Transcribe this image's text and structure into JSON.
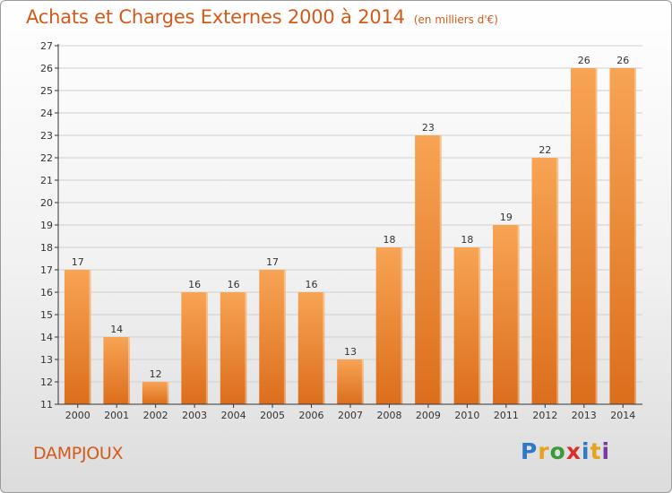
{
  "header": {
    "title": "Achats et Charges Externes 2000 à 2014",
    "subtitle": "(en milliers d'€)"
  },
  "footer": {
    "commune": "DAMPJOUX",
    "logo_letters": [
      "P",
      "r",
      "o",
      "x",
      "i",
      "t",
      "i"
    ],
    "logo_colors": [
      "#2e78c8",
      "#e8a21c",
      "#3a9a3a",
      "#d8302a",
      "#2e78c8",
      "#e8a21c",
      "#7a3aa0"
    ]
  },
  "colors": {
    "bar_light": "#f7a454",
    "bar_dark": "#dc6e1c",
    "grid": "#cfcfcf",
    "axis": "#333333",
    "text": "#333333"
  },
  "chart_data": {
    "type": "bar",
    "categories": [
      "2000",
      "2001",
      "2002",
      "2003",
      "2004",
      "2005",
      "2006",
      "2007",
      "2008",
      "2009",
      "2010",
      "2011",
      "2012",
      "2013",
      "2014"
    ],
    "values": [
      17,
      14,
      12,
      16,
      16,
      17,
      16,
      13,
      18,
      23,
      18,
      19,
      22,
      26,
      26
    ],
    "ylim": [
      11,
      27
    ],
    "yticks": [
      11,
      12,
      13,
      14,
      15,
      16,
      17,
      18,
      19,
      20,
      21,
      22,
      23,
      24,
      25,
      26,
      27
    ],
    "grid": true,
    "data_labels": true
  }
}
